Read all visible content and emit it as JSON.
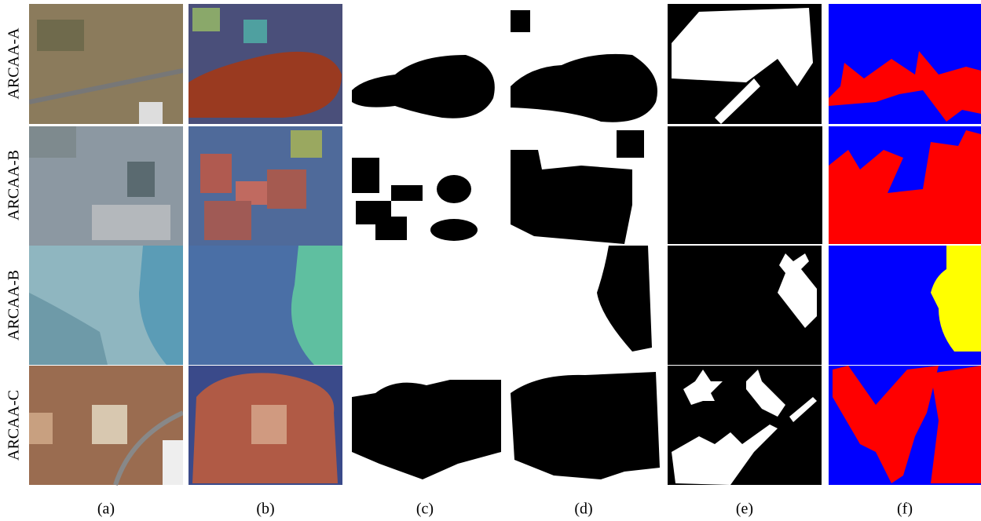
{
  "row_labels": [
    "ARCAA-A",
    "ARCAA-B",
    "ARCAA-B",
    "ARCAA-C"
  ],
  "column_labels": [
    "(a)",
    "(b)",
    "(c)",
    "(d)",
    "(e)",
    "(f)"
  ]
}
